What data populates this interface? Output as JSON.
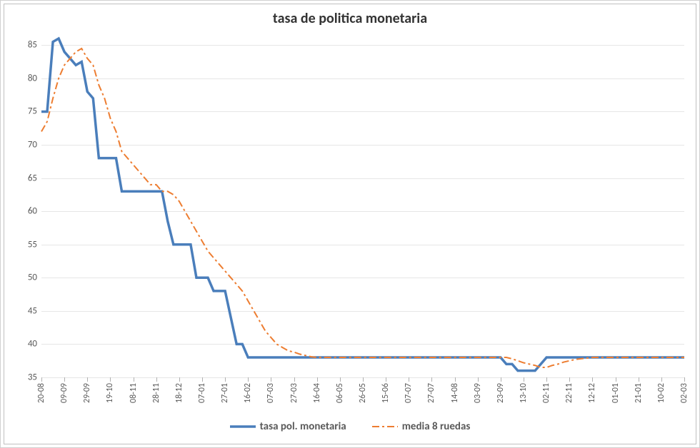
{
  "chart": {
    "type": "line",
    "title": "tasa de politica monetaria",
    "title_fontsize": 20,
    "title_color": "#333333",
    "background_color": "#ffffff",
    "plot_background_color": "#ffffff",
    "grid_color": "#e6e6e6",
    "axis_color": "#b0b0b0",
    "tick_label_color": "#595959",
    "tick_fontsize": 13,
    "x_rotation": -90,
    "y_axis": {
      "min": 35,
      "max": 86,
      "ticks": [
        35,
        40,
        45,
        50,
        55,
        60,
        65,
        70,
        75,
        80,
        85
      ]
    },
    "x_labels": [
      "20-08",
      "09-09",
      "29-09",
      "19-10",
      "08-11",
      "28-11",
      "18-12",
      "07-01",
      "27-01",
      "16-02",
      "07-03",
      "27-03",
      "16-04",
      "06-05",
      "26-05",
      "15-06",
      "07-07",
      "27-07",
      "14-08",
      "03-09",
      "23-09",
      "13-10",
      "02-11",
      "22-11",
      "12-12",
      "01-01",
      "21-01",
      "10-02",
      "02-03"
    ],
    "series": [
      {
        "name": "tasa pol. monetaria",
        "color": "#4a7ebb",
        "line_width": 3.5,
        "dash": "none",
        "values": [
          75,
          75,
          85.5,
          86,
          84,
          83,
          82,
          82.5,
          78,
          77,
          68,
          68,
          68,
          68,
          63,
          63,
          63,
          63,
          63,
          63,
          63,
          63,
          58.5,
          55,
          55,
          55,
          55,
          50,
          50,
          50,
          48,
          48,
          48,
          44,
          40,
          40,
          38,
          38,
          38,
          38,
          38,
          38,
          38,
          38,
          38,
          38,
          38,
          38,
          38,
          38,
          38,
          38,
          38,
          38,
          38,
          38,
          38,
          38,
          38,
          38,
          38,
          38,
          38,
          38,
          38,
          38,
          38,
          38,
          38,
          38,
          38,
          38,
          38,
          38,
          38,
          38,
          38,
          38,
          38,
          38,
          38,
          37,
          37,
          36,
          36,
          36,
          36,
          37,
          38,
          38,
          38,
          38,
          38,
          38,
          38,
          38,
          38,
          38,
          38,
          38,
          38,
          38,
          38,
          38,
          38,
          38,
          38,
          38,
          38,
          38,
          38,
          38,
          38
        ]
      },
      {
        "name": "media 8 ruedas",
        "color": "#ed7d31",
        "line_width": 2,
        "dash": "10,4,3,4",
        "values": [
          72,
          73.5,
          77,
          80,
          82,
          83,
          84,
          84.5,
          83,
          82,
          79,
          77,
          74,
          72,
          69,
          68,
          67,
          66,
          65,
          64,
          64,
          63,
          63,
          62.5,
          61.5,
          60,
          58.5,
          57,
          55.5,
          54,
          53,
          52,
          51,
          50,
          49,
          48,
          46.5,
          45,
          43.5,
          42,
          41,
          40,
          39.5,
          39,
          38.8,
          38.5,
          38.3,
          38.1,
          38,
          38,
          38,
          38,
          38,
          38,
          38,
          38,
          38,
          38,
          38,
          38,
          38,
          38,
          38,
          38,
          38,
          38,
          38,
          38,
          38,
          38,
          38,
          38,
          38,
          38,
          38,
          38,
          38,
          38,
          38,
          38,
          38,
          38,
          37.8,
          37.5,
          37.2,
          37,
          36.8,
          36.5,
          36.5,
          36.8,
          37,
          37.3,
          37.5,
          37.7,
          37.8,
          37.9,
          38,
          38,
          38,
          38,
          38,
          38,
          38,
          38,
          38,
          38,
          38,
          38,
          38,
          38,
          38,
          38,
          38
        ]
      }
    ],
    "legend": {
      "position": "bottom",
      "fontsize": 15,
      "font_weight": "bold"
    }
  }
}
